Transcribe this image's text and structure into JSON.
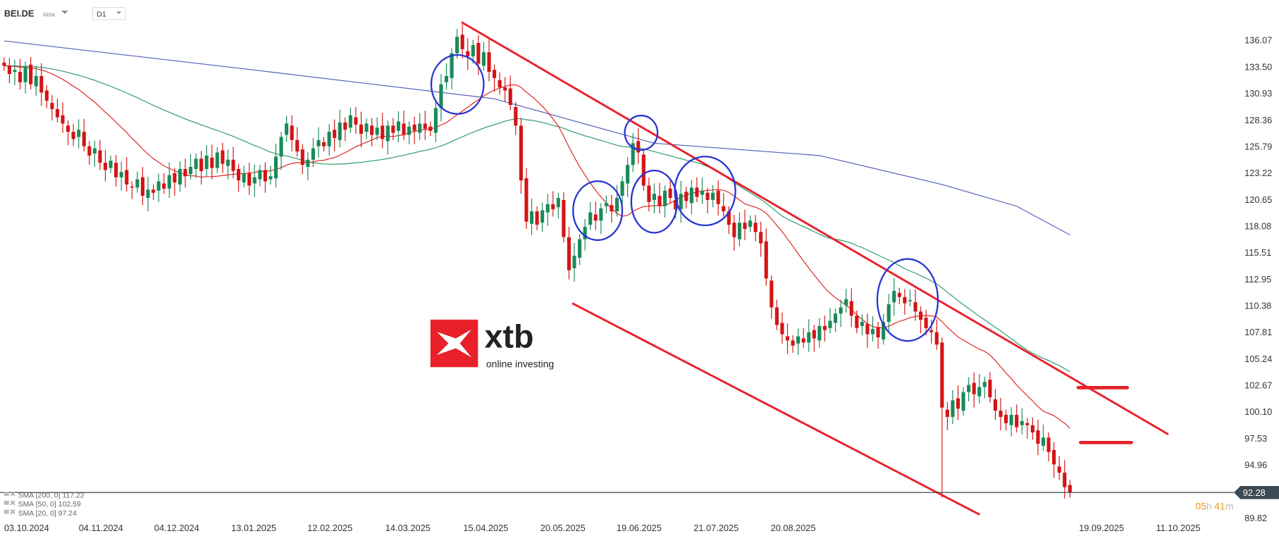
{
  "header": {
    "symbol": "BEI.DE",
    "type": "Aktie",
    "timeframe": "D1"
  },
  "logo": {
    "brand": "xtb",
    "tagline": "online investing"
  },
  "legend": [
    {
      "label": "SMA [200, 0] 117.22"
    },
    {
      "label": "SMA [50, 0] 102.59"
    },
    {
      "label": "SMA [20, 0] 97.24"
    }
  ],
  "countdown": {
    "hours": "05",
    "h": "h",
    "minutes": "41",
    "m": "m"
  },
  "colors": {
    "up": "#1a8a5a",
    "down": "#d41414",
    "sma20": "#e02020",
    "sma50": "#2a9a6a",
    "sma200": "#5060b8",
    "trend": "#e8202a",
    "marker": "#2a35d0"
  },
  "chart_data": {
    "type": "candlestick",
    "title": "",
    "ylim": [
      89.0,
      138.0
    ],
    "y_ticks": [
      "136.07",
      "133.50",
      "130.93",
      "128.36",
      "125.79",
      "123.22",
      "120.65",
      "118.08",
      "115.51",
      "112.95",
      "110.38",
      "107.81",
      "105.24",
      "102.67",
      "100.10",
      "97.53",
      "94.96",
      "89.82"
    ],
    "x_ticks": [
      "03.10.2024",
      "04.11.2024",
      "04.12.2024",
      "13.01.2025",
      "12.02.2025",
      "14.03.2025",
      "15.04.2025",
      "20.05.2025",
      "19.06.2025",
      "21.07.2025",
      "20.08.2025",
      "19.09.2025",
      "11.10.2025"
    ],
    "last_price": "92.28",
    "closes": [
      133.6,
      132.8,
      133.2,
      132.0,
      133.5,
      131.8,
      132.6,
      131.0,
      130.2,
      129.4,
      128.6,
      128.0,
      127.2,
      126.5,
      127.4,
      125.8,
      124.9,
      125.6,
      124.2,
      123.5,
      124.4,
      122.8,
      123.3,
      122.1,
      121.8,
      122.6,
      121.0,
      121.6,
      121.3,
      122.4,
      121.7,
      123.0,
      122.3,
      123.6,
      122.9,
      123.8,
      124.6,
      123.4,
      124.9,
      123.7,
      125.2,
      124.1,
      124.5,
      123.4,
      122.5,
      123.2,
      122.0,
      122.8,
      123.5,
      122.4,
      122.9,
      124.8,
      126.7,
      128.0,
      126.4,
      125.3,
      124.0,
      124.5,
      125.6,
      126.4,
      125.8,
      127.2,
      126.6,
      128.1,
      127.4,
      128.8,
      127.9,
      127.0,
      128.0,
      126.9,
      127.6,
      126.5,
      127.8,
      127.1,
      128.2,
      126.9,
      127.7,
      127.3,
      128.0,
      127.5,
      127.3,
      129.5,
      131.8,
      132.6,
      134.8,
      136.4,
      135.2,
      134.5,
      135.6,
      133.8,
      134.9,
      133.0,
      132.4,
      131.5,
      131.2,
      129.8,
      127.8,
      122.5,
      118.5,
      119.5,
      118.2,
      119.6,
      120.2,
      119.7,
      120.8,
      117.0,
      113.8,
      115.2,
      116.8,
      118.0,
      119.4,
      118.6,
      119.8,
      120.3,
      119.5,
      120.8,
      122.4,
      124.0,
      126.1,
      125.2,
      122.0,
      120.4,
      121.2,
      120.0,
      121.5,
      120.8,
      119.7,
      121.2,
      120.5,
      121.8,
      120.9,
      121.5,
      120.6,
      121.3,
      120.2,
      119.5,
      118.2,
      117.0,
      118.4,
      117.8,
      118.6,
      117.5,
      116.4,
      113.0,
      110.2,
      108.5,
      107.6,
      107.0,
      106.5,
      107.4,
      106.8,
      107.8,
      107.2,
      108.4,
      108.0,
      108.9,
      109.6,
      110.2,
      111.0,
      109.4,
      108.2,
      108.8,
      107.6,
      108.1,
      107.3,
      108.8,
      110.5,
      111.8,
      111.2,
      110.6,
      110.9,
      109.8,
      109.0,
      108.2,
      107.8,
      106.6,
      100.5,
      99.6,
      101.2,
      100.4,
      102.0,
      102.7,
      101.8,
      102.5,
      103.0,
      101.5,
      100.2,
      99.6,
      99.0,
      99.8,
      98.6,
      99.2,
      98.8,
      98.1,
      97.0,
      97.6,
      96.2,
      95.0,
      94.2,
      92.8,
      92.28
    ],
    "sma200_points": [
      [
        0,
        136.0
      ],
      [
        45,
        133.3
      ],
      [
        92,
        130.4
      ],
      [
        122,
        126.1
      ],
      [
        153,
        124.9
      ],
      [
        176,
        122.1
      ],
      [
        190,
        120.0
      ],
      [
        200,
        117.22
      ]
    ],
    "series": [
      {
        "name": "SMA [200, 0]",
        "last": 117.22
      },
      {
        "name": "SMA [50, 0]",
        "last": 102.59
      },
      {
        "name": "SMA [20, 0]",
        "last": 97.24
      }
    ]
  }
}
